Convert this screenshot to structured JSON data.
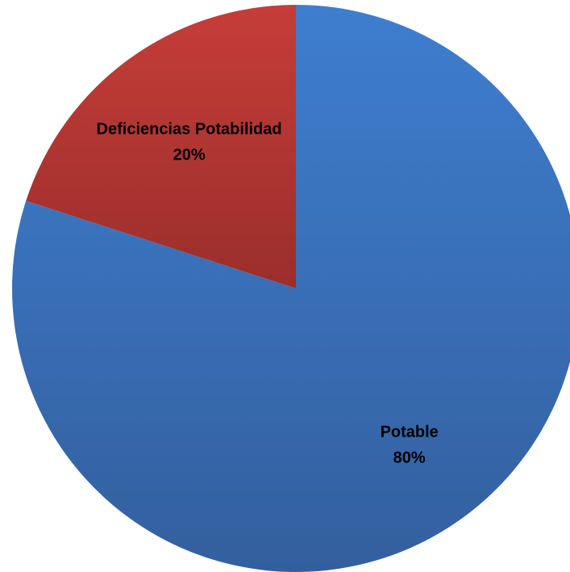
{
  "chart_data": {
    "type": "pie",
    "title": "",
    "start_angle_deg": 0,
    "direction": "clockwise",
    "slices": [
      {
        "name": "Potable",
        "value": 80,
        "percent_label": "80%",
        "color": "#3b75c3"
      },
      {
        "name": "Deficiencias Potabilidad",
        "value": 20,
        "percent_label": "20%",
        "color": "#b53532"
      }
    ],
    "legend": "none",
    "data_labels": "inside, category name and percentage"
  }
}
